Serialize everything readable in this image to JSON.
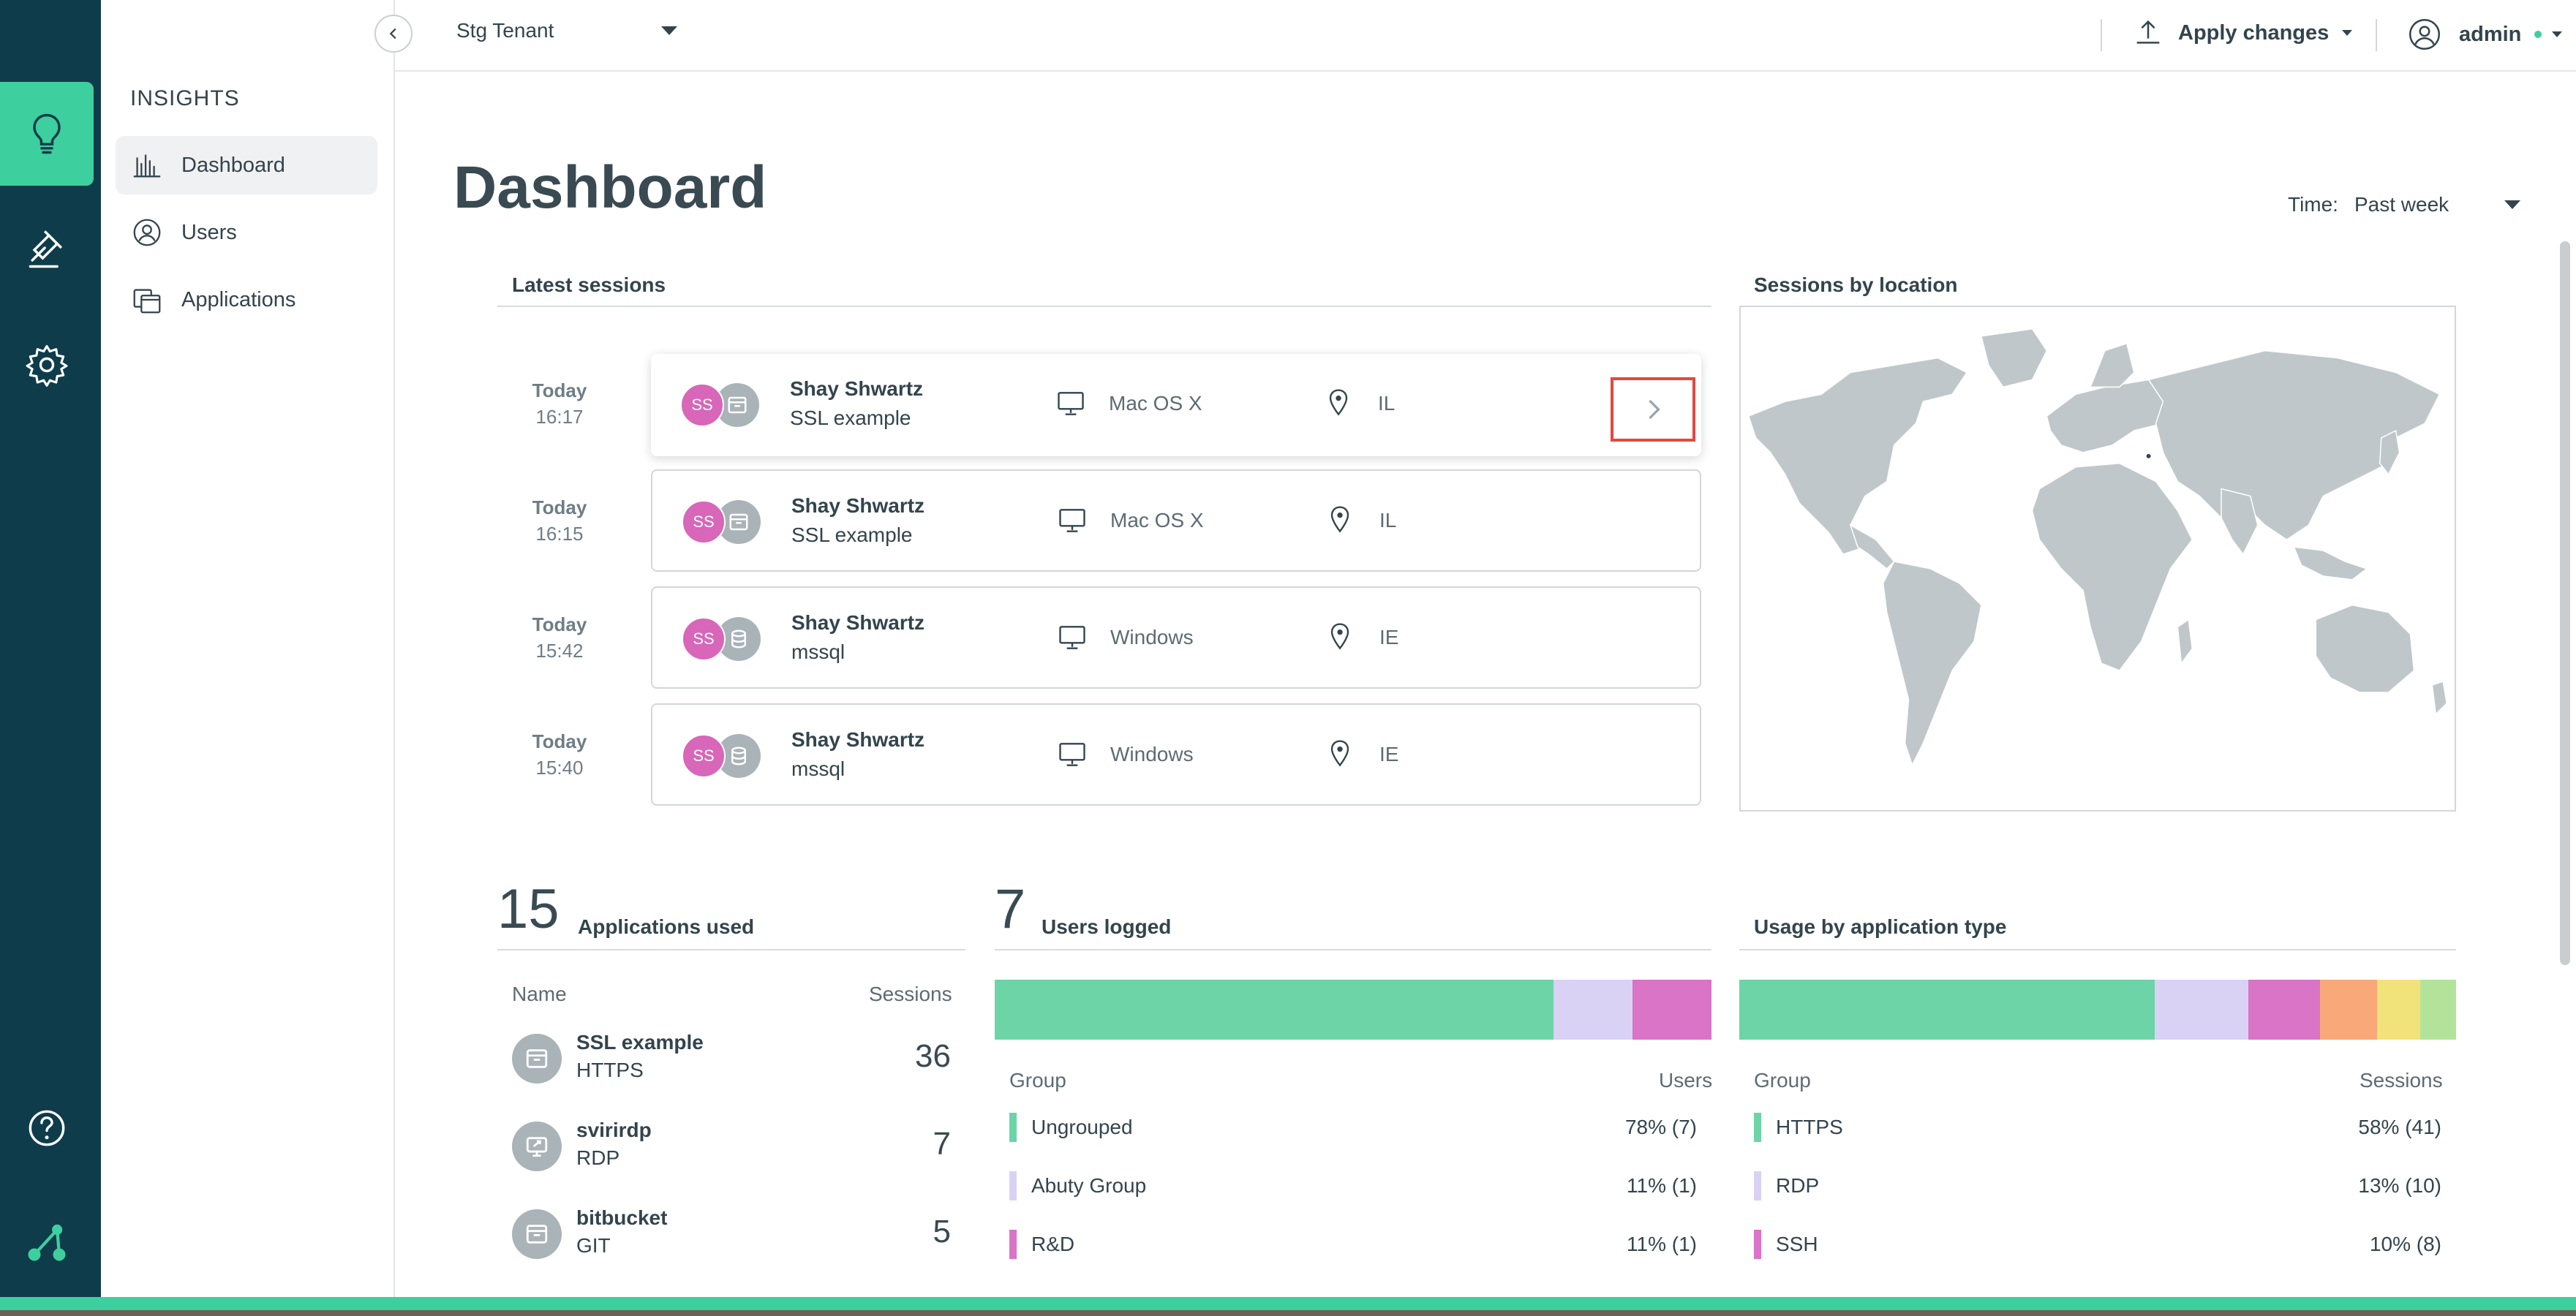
{
  "app": {
    "brand_color": "#3ecf9e",
    "rail_color": "#0e3c4a"
  },
  "rail": {
    "items": [
      {
        "icon": "lightbulb-icon",
        "active": true
      },
      {
        "icon": "gavel-icon",
        "active": false
      },
      {
        "icon": "gear-icon",
        "active": false
      }
    ],
    "bottom": [
      {
        "icon": "help-icon"
      },
      {
        "icon": "logo-icon"
      }
    ]
  },
  "sidebar": {
    "title": "INSIGHTS",
    "items": [
      {
        "label": "Dashboard",
        "icon": "bar-chart-icon",
        "active": true
      },
      {
        "label": "Users",
        "icon": "user-icon",
        "active": false
      },
      {
        "label": "Applications",
        "icon": "applications-icon",
        "active": false
      }
    ]
  },
  "topbar": {
    "tenant": "Stg Tenant",
    "apply_label": "Apply changes",
    "user_name": "admin"
  },
  "page": {
    "title": "Dashboard",
    "time_label": "Time:",
    "time_value": "Past week"
  },
  "latest_sessions": {
    "title": "Latest sessions",
    "rows": [
      {
        "day": "Today",
        "time": "16:17",
        "initials": "SS",
        "user": "Shay Shwartz",
        "app": "SSL example",
        "os": "Mac OS X",
        "location": "IL",
        "app_icon": "browser-icon"
      },
      {
        "day": "Today",
        "time": "16:15",
        "initials": "SS",
        "user": "Shay Shwartz",
        "app": "SSL example",
        "os": "Mac OS X",
        "location": "IL",
        "app_icon": "browser-icon"
      },
      {
        "day": "Today",
        "time": "15:42",
        "initials": "SS",
        "user": "Shay Shwartz",
        "app": "mssql",
        "os": "Windows",
        "location": "IE",
        "app_icon": "database-icon"
      },
      {
        "day": "Today",
        "time": "15:40",
        "initials": "SS",
        "user": "Shay Shwartz",
        "app": "mssql",
        "os": "Windows",
        "location": "IE",
        "app_icon": "database-icon"
      }
    ]
  },
  "sessions_by_location": {
    "title": "Sessions by location"
  },
  "applications_used": {
    "count": "15",
    "label": "Applications used",
    "col_name": "Name",
    "col_sessions": "Sessions",
    "rows": [
      {
        "name": "SSL example",
        "type": "HTTPS",
        "sessions": "36",
        "icon": "browser-icon"
      },
      {
        "name": "svirirdp",
        "type": "RDP",
        "sessions": "7",
        "icon": "remote-desktop-icon"
      },
      {
        "name": "bitbucket",
        "type": "GIT",
        "sessions": "5",
        "icon": "browser-icon"
      }
    ]
  },
  "users_logged": {
    "count": "7",
    "label": "Users logged",
    "col_group": "Group",
    "col_users": "Users",
    "segments": [
      {
        "share": 78,
        "color": "#6dd4a8"
      },
      {
        "share": 11,
        "color": "#d9d2f5"
      },
      {
        "share": 11,
        "color": "#d974c6"
      }
    ],
    "rows": [
      {
        "name": "Ungrouped",
        "value": "78% (7)",
        "color": "#6dd4a8"
      },
      {
        "name": "Abuty Group",
        "value": "11% (1)",
        "color": "#d9d2f5"
      },
      {
        "name": "R&D",
        "value": "11% (1)",
        "color": "#d974c6"
      }
    ]
  },
  "usage_by_type": {
    "title": "Usage by application type",
    "col_group": "Group",
    "col_sessions": "Sessions",
    "segments": [
      {
        "share": 58,
        "color": "#6dd4a8"
      },
      {
        "share": 13,
        "color": "#d9d2f5"
      },
      {
        "share": 10,
        "color": "#d974c6"
      },
      {
        "share": 8,
        "color": "#f9a87a"
      },
      {
        "share": 6,
        "color": "#f2e27a"
      },
      {
        "share": 5,
        "color": "#b3e39b"
      }
    ],
    "rows": [
      {
        "name": "HTTPS",
        "value": "58% (41)",
        "color": "#6dd4a8"
      },
      {
        "name": "RDP",
        "value": "13% (10)",
        "color": "#d9d2f5"
      },
      {
        "name": "SSH",
        "value": "10% (8)",
        "color": "#d974c6"
      }
    ]
  }
}
